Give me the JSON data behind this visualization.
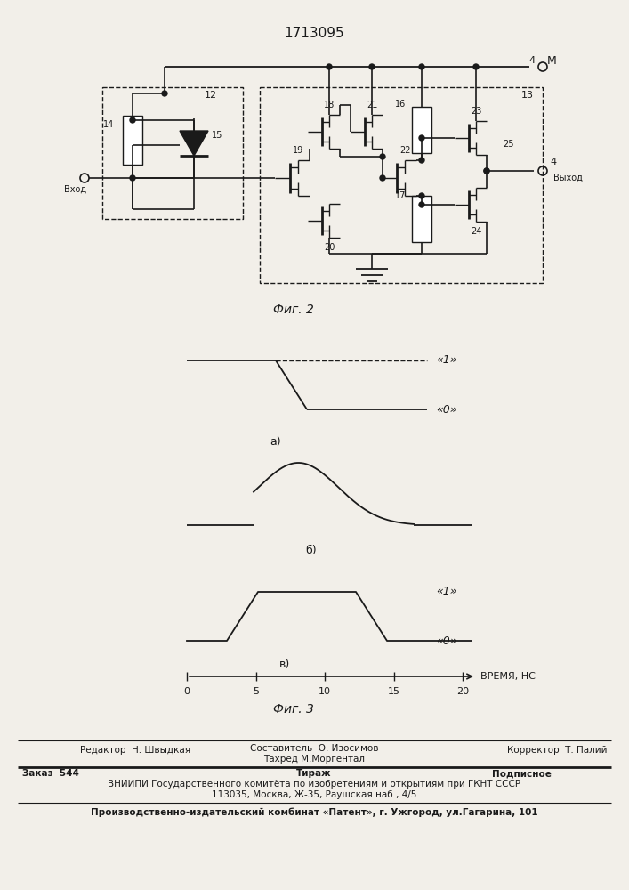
{
  "title": "1713095",
  "fig2_label": "Фиг. 2",
  "fig3_label": "Фиг. 3",
  "background_color": "#f2efe9",
  "line_color": "#1a1a1a",
  "waveform_a_label": "а)",
  "waveform_b_label": "б)",
  "waveform_v_label": "в)",
  "x_ticks": [
    0,
    5,
    10,
    15,
    20
  ],
  "x_label": "ВРЕМЯ, НС",
  "label_1": "«1»",
  "label_0": "«0»",
  "top_node": "М",
  "input_label": "Вход",
  "output_label": "Выход",
  "node4": "4",
  "el12": "12",
  "el13": "13",
  "el14": "14",
  "el15": "15",
  "el16": "16",
  "el17": "17",
  "el18": "18",
  "el19": "19",
  "el20": "20",
  "el21": "21",
  "el22": "22",
  "el23": "23",
  "el24": "24",
  "el25": "25",
  "bottom_line1_left": "Редактор  Н. Швыдкая",
  "bottom_line1_center_top": "Составитель  О. Изосимов",
  "bottom_line1_center_bot": "Тахред М.Моргентал",
  "bottom_line1_right": "Корректор  Т. Палий",
  "bottom_line2_left": "Заказ  544",
  "bottom_line2_center": "Тираж",
  "bottom_line2_right": "Подписное",
  "bottom_line3": "ВНИИПИ Государственного комитёта по изобретениям и открытиям при ГКНТ СССР",
  "bottom_line4": "113035, Москва, Ж-35, Раушская наб., 4/5",
  "bottom_line5": "Производственно-издательский комбинат «Патент», г. Ужгород, ул.Гагарина, 101"
}
